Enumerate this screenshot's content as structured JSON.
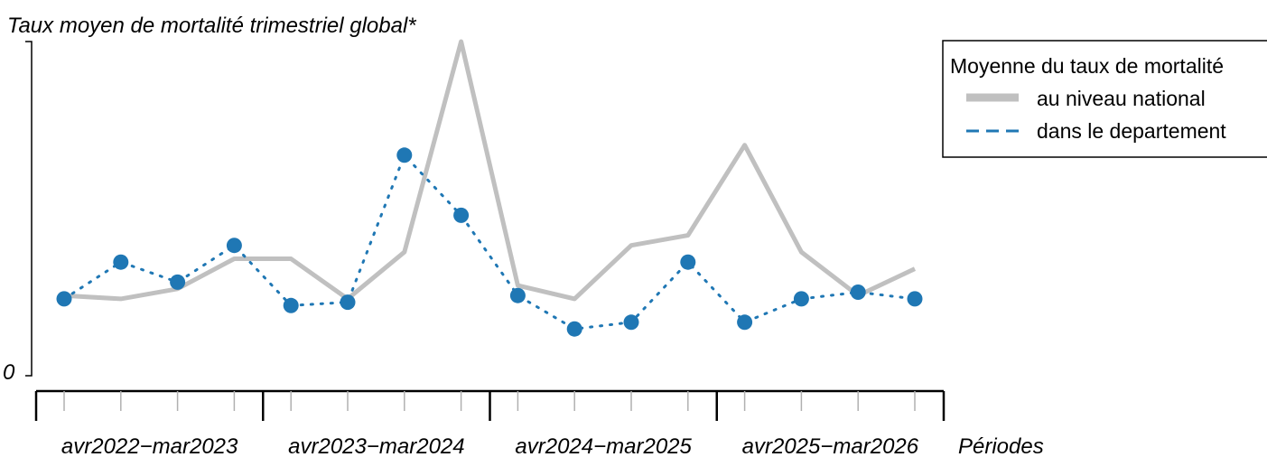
{
  "chart_data": {
    "type": "line",
    "title": "Taux moyen de mortalité trimestriel global*",
    "xlabel": "Périodes",
    "ylabel": "",
    "y_tick_labels": [
      "0"
    ],
    "ylim": [
      0,
      100
    ],
    "periods": [
      "avr2022−mar2023",
      "avr2023−mar2024",
      "avr2024−mar2025",
      "avr2025−mar2026"
    ],
    "quarters_per_period": 4,
    "legend": {
      "title": "Moyenne du taux de mortalité",
      "position": "top-right",
      "entries": [
        "au niveau national",
        "dans le departement"
      ]
    },
    "series": [
      {
        "name": "au niveau national",
        "color": "#c0c0c0",
        "style": "solid",
        "values": [
          24,
          23,
          26,
          35,
          35,
          23,
          37,
          100,
          27,
          23,
          39,
          42,
          69,
          37,
          24,
          32
        ]
      },
      {
        "name": "dans le departement",
        "color": "#1f77b4",
        "style": "dotted",
        "markers": true,
        "values": [
          23,
          34,
          28,
          39,
          21,
          22,
          66,
          48,
          24,
          14,
          16,
          34,
          16,
          23,
          25,
          23
        ]
      }
    ]
  }
}
